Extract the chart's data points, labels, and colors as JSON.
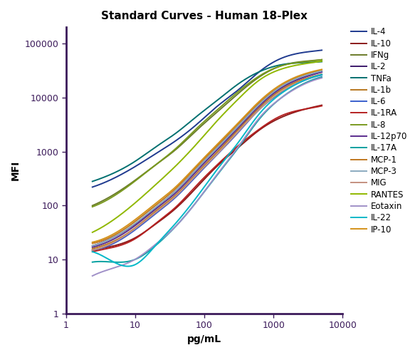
{
  "title": "Standard Curves - Human 18-Plex",
  "xlabel": "pg/mL",
  "ylabel": "MFI",
  "xlim": [
    2,
    8000
  ],
  "ylim": [
    1,
    200000
  ],
  "series": [
    {
      "label": "IL-4",
      "color": "#1F3A8F",
      "x": [
        2.4,
        4.9,
        9.8,
        19.5,
        39,
        78,
        156,
        313,
        625,
        1250,
        2500,
        5000
      ],
      "y": [
        220,
        320,
        520,
        900,
        1600,
        3200,
        7000,
        14000,
        30000,
        52000,
        67000,
        75000
      ]
    },
    {
      "label": "IL-10",
      "color": "#8B1A1A",
      "x": [
        2.4,
        4.9,
        9.8,
        19.5,
        39,
        78,
        156,
        313,
        625,
        1250,
        2500,
        5000
      ],
      "y": [
        15,
        18,
        25,
        45,
        90,
        220,
        550,
        1200,
        2500,
        4200,
        5800,
        7200
      ]
    },
    {
      "label": "IFNg",
      "color": "#6B7C2A",
      "x": [
        2.4,
        4.9,
        9.8,
        19.5,
        39,
        78,
        156,
        313,
        625,
        1250,
        2500,
        5000
      ],
      "y": [
        100,
        160,
        290,
        560,
        1100,
        2500,
        5500,
        12000,
        24000,
        38000,
        46000,
        50000
      ]
    },
    {
      "label": "IL-2",
      "color": "#3D1A6B",
      "x": [
        2.4,
        4.9,
        9.8,
        19.5,
        39,
        78,
        156,
        313,
        625,
        1250,
        2500,
        5000
      ],
      "y": [
        18,
        26,
        45,
        90,
        190,
        480,
        1200,
        3000,
        7500,
        15000,
        23000,
        30000
      ]
    },
    {
      "label": "TNFa",
      "color": "#007070",
      "x": [
        2.4,
        4.9,
        9.8,
        19.5,
        39,
        78,
        156,
        313,
        625,
        1250,
        2500,
        5000
      ],
      "y": [
        280,
        400,
        650,
        1200,
        2200,
        4500,
        9000,
        18000,
        30000,
        40000,
        44000,
        46000
      ]
    },
    {
      "label": "IL-1b",
      "color": "#B87820",
      "x": [
        2.4,
        4.9,
        9.8,
        19.5,
        39,
        78,
        156,
        313,
        625,
        1250,
        2500,
        5000
      ],
      "y": [
        16,
        22,
        38,
        78,
        160,
        400,
        1000,
        2600,
        6500,
        13500,
        21000,
        27000
      ]
    },
    {
      "label": "IL-6",
      "color": "#3A5FCD",
      "x": [
        2.4,
        4.9,
        9.8,
        19.5,
        39,
        78,
        156,
        313,
        625,
        1250,
        2500,
        5000
      ],
      "y": [
        15,
        20,
        35,
        70,
        145,
        360,
        900,
        2300,
        6000,
        12000,
        19500,
        26000
      ]
    },
    {
      "label": "IL-1RA",
      "color": "#B52222",
      "x": [
        2.4,
        4.9,
        9.8,
        19.5,
        39,
        78,
        156,
        313,
        625,
        1250,
        2500,
        5000
      ],
      "y": [
        14,
        17,
        24,
        46,
        95,
        240,
        580,
        1300,
        2600,
        4500,
        5900,
        7000
      ]
    },
    {
      "label": "IL-8",
      "color": "#7A9A20",
      "x": [
        2.4,
        4.9,
        9.8,
        19.5,
        39,
        78,
        156,
        313,
        625,
        1250,
        2500,
        5000
      ],
      "y": [
        95,
        150,
        280,
        560,
        1150,
        2700,
        6000,
        13000,
        25000,
        38000,
        45000,
        50000
      ]
    },
    {
      "label": "IL-12p70",
      "color": "#5B2D8E",
      "x": [
        2.4,
        4.9,
        9.8,
        19.5,
        39,
        78,
        156,
        313,
        625,
        1250,
        2500,
        5000
      ],
      "y": [
        17,
        24,
        42,
        85,
        175,
        440,
        1100,
        2800,
        7000,
        14500,
        22500,
        29500
      ]
    },
    {
      "label": "IL-17A",
      "color": "#00A0A0",
      "x": [
        2.4,
        4.9,
        9.8,
        19.5,
        39,
        78,
        156,
        313,
        625,
        1250,
        2500,
        5000
      ],
      "y": [
        9,
        9,
        10,
        18,
        42,
        120,
        380,
        1200,
        4000,
        9500,
        17000,
        24000
      ]
    },
    {
      "label": "MCP-1",
      "color": "#C07820",
      "x": [
        2.4,
        4.9,
        9.8,
        19.5,
        39,
        78,
        156,
        313,
        625,
        1250,
        2500,
        5000
      ],
      "y": [
        20,
        28,
        50,
        100,
        210,
        530,
        1300,
        3300,
        8000,
        16000,
        25000,
        32000
      ]
    },
    {
      "label": "MCP-3",
      "color": "#8BAAC0",
      "x": [
        2.4,
        4.9,
        9.8,
        19.5,
        39,
        78,
        156,
        313,
        625,
        1250,
        2500,
        5000
      ],
      "y": [
        18,
        26,
        46,
        92,
        190,
        480,
        1200,
        3000,
        7500,
        15500,
        24000,
        31000
      ]
    },
    {
      "label": "MIG",
      "color": "#C49080",
      "x": [
        2.4,
        4.9,
        9.8,
        19.5,
        39,
        78,
        156,
        313,
        625,
        1250,
        2500,
        5000
      ],
      "y": [
        15,
        21,
        37,
        74,
        152,
        380,
        920,
        2400,
        6000,
        12500,
        20000,
        27000
      ]
    },
    {
      "label": "RANTES",
      "color": "#90B800",
      "x": [
        2.4,
        4.9,
        9.8,
        19.5,
        39,
        78,
        156,
        313,
        625,
        1250,
        2500,
        5000
      ],
      "y": [
        32,
        55,
        110,
        240,
        550,
        1400,
        3800,
        9500,
        21000,
        33000,
        41000,
        47000
      ]
    },
    {
      "label": "Eotaxin",
      "color": "#A090C8",
      "x": [
        2.4,
        4.9,
        9.8,
        19.5,
        39,
        78,
        156,
        313,
        625,
        1250,
        2500,
        5000
      ],
      "y": [
        5,
        7,
        10,
        19,
        42,
        120,
        390,
        1250,
        4200,
        9500,
        16500,
        23000
      ]
    },
    {
      "label": "IL-22",
      "color": "#00B8C8",
      "x": [
        2.4,
        4.9,
        9.8,
        19.5,
        39,
        78,
        156,
        313,
        625,
        1250,
        2500,
        5000
      ],
      "y": [
        14,
        9,
        8,
        18,
        48,
        145,
        480,
        1500,
        5000,
        11500,
        19500,
        26500
      ]
    },
    {
      "label": "IP-10",
      "color": "#D4921A",
      "x": [
        2.4,
        4.9,
        9.8,
        19.5,
        39,
        78,
        156,
        313,
        625,
        1250,
        2500,
        5000
      ],
      "y": [
        21,
        30,
        54,
        108,
        225,
        560,
        1380,
        3450,
        8500,
        17000,
        26000,
        33000
      ]
    }
  ],
  "title_fontsize": 11,
  "label_fontsize": 10,
  "legend_fontsize": 8.5,
  "spine_color": "#3B1A5A",
  "tick_color": "#3B1A5A",
  "tick_label_color": "#3B1A5A"
}
